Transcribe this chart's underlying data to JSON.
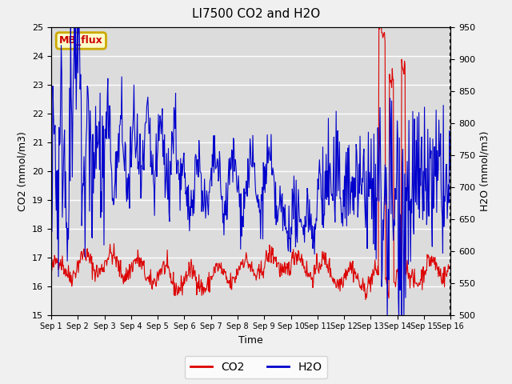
{
  "title": "LI7500 CO2 and H2O",
  "xlabel": "Time",
  "ylabel_left": "CO2 (mmol/m3)",
  "ylabel_right": "H2O (mmol/m3)",
  "ylim_left": [
    15.0,
    25.0
  ],
  "ylim_right": [
    500,
    950
  ],
  "xtick_labels": [
    "Sep 1",
    "Sep 2",
    "Sep 3",
    "Sep 4",
    "Sep 5",
    "Sep 6",
    "Sep 7",
    "Sep 8",
    "Sep 9",
    "Sep 10",
    "Sep 11",
    "Sep 12",
    "Sep 13",
    "Sep 14",
    "Sep 15",
    "Sep 16"
  ],
  "yticks_left": [
    15.0,
    16.0,
    17.0,
    18.0,
    19.0,
    20.0,
    21.0,
    22.0,
    23.0,
    24.0,
    25.0
  ],
  "yticks_right": [
    500,
    550,
    600,
    650,
    700,
    750,
    800,
    850,
    900,
    950
  ],
  "legend_labels": [
    "CO2",
    "H2O"
  ],
  "co2_color": "#dd0000",
  "h2o_color": "#0000cc",
  "box_label": "MB_flux",
  "box_facecolor": "#ffffcc",
  "box_edgecolor": "#ccaa00",
  "box_textcolor": "#cc0000",
  "fig_facecolor": "#f0f0f0",
  "axes_facecolor": "#dcdcdc",
  "grid_color": "#ffffff",
  "title_fontsize": 11,
  "label_fontsize": 9,
  "tick_fontsize": 8
}
